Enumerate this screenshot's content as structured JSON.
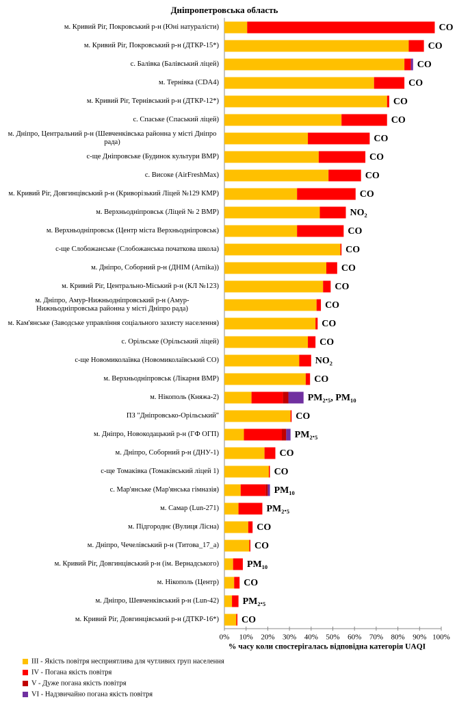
{
  "chart_data": {
    "type": "stacked-barh",
    "title": "Дніпропетровська  область",
    "x_label": "% часу коли спостерігалась відповідна категорія UAQI",
    "categories": [
      "м. Кривий  Ріг, Покровський  р-н (Юні натуралісти)",
      "м. Кривий  Ріг, Покровський  р-н (ДТКР-15*)",
      "с. Балівка  (Балівський ліцей)",
      "м. Тернівка  (CDA4)",
      "м. Кривий  Ріг, Тернівський  р-н  (ДТКР-12*)",
      "с. Спаське  (Спаський ліцей)",
      "м. Дніпро,  Центральний  р-н (Шевченківська районна  у місті Дніпро рада)",
      "с-ще Дніпровське  (Будинок культури ВМР)",
      "с. Високе  (AirFreshMax)",
      "м. Кривий  Ріг, Довгинцівський  р-н  (Криворізький Ліцей №129 КМР)",
      "м. Верхньодніпровськ  (Ліцей № 2 ВМР)",
      "м. Верхньодніпровськ  (Центр міста Верхньодніпровськ)",
      "с-ще Слобожанське  (Слобожанська початкова школа)",
      "м. Дніпро,  Соборний  р-н  (ДНІМ  (Arnika))",
      "м. Кривий  Ріг, Центрально-Міський  р-н  (КЛ №123)",
      "м. Дніпро,  Амур-Нижньодніпровський  р-н  (Амур-Нижньодніпровська  районна  у місті Дніпро рада)",
      "м. Кам'янське  (Заводське управління  соціального захисту населення)",
      "с. Орільське  (Орільський ліцей)",
      "с-ще Новомиколаївка  (Новомиколаївський  СО)",
      "м. Верхньодніпровськ  (Лікарня ВМР)",
      "м. Нікополь  (Княжа-2)",
      "ПЗ \"Дніпровсько-Орільський\"",
      "м. Дніпро,  Новокодацький  р-н  (ГФ ОГП)",
      "м. Дніпро,  Соборний  р-н  (ДНУ-1)",
      "с-ще Томаківка  (Томаківський  ліцей 1)",
      "с. Мар'янське  (Мар'янська гімназія)",
      "м. Самар  (Lun-271)",
      "м. Підгороднє  (Вулиця  Лісна)",
      "м. Дніпро,  Чечелівський  р-н  (Титова_17_а)",
      "м. Кривий  Ріг, Довгинцівський  р-н  (ім. Вернадського)",
      "м. Нікополь  (Центр)",
      "м. Дніпро,  Шевченківський  р-н  (Lun-42)",
      "м. Кривий  Ріг, Довгинцівський  р-н  (ДТКР-16*)"
    ],
    "annotations": [
      "CO",
      "CO",
      "CO",
      "CO",
      "CO",
      "CO",
      "CO",
      "CO",
      "CO",
      "CO",
      "NO₂",
      "CO",
      "CO",
      "CO",
      "CO",
      "CO",
      "CO",
      "CO",
      "NO₂",
      "CO",
      "PM₂.₅, PM₁₀",
      "CO",
      "PM₂.₅",
      "CO",
      "CO",
      "PM₁₀",
      "PM₂.₅",
      "CO",
      "CO",
      "PM₁₀",
      "CO",
      "PM₂.₅",
      "CO"
    ],
    "series": [
      {
        "name": "ІІІ - Якість повітря несприятлива  для чутливих  груп населення",
        "color": "#FFC000",
        "values": [
          10.5,
          85,
          83,
          69,
          75,
          54,
          38.5,
          43.5,
          48,
          33.5,
          44,
          33.5,
          53.5,
          47,
          45.5,
          42.5,
          42,
          38.5,
          34.5,
          37.5,
          12.5,
          30.5,
          9,
          18.5,
          20.5,
          7.5,
          6.5,
          11,
          11.5,
          4,
          4.5,
          3.5,
          5.5
        ]
      },
      {
        "name": "IV - Погана якість повітря",
        "color": "#FF0000",
        "values": [
          86.5,
          7,
          3,
          14,
          1,
          21,
          28.5,
          21.5,
          15,
          27,
          12,
          21.5,
          0.5,
          5,
          3.5,
          2,
          1,
          3.5,
          5.5,
          2,
          14.5,
          0.5,
          17.5,
          5,
          0.5,
          11.5,
          11,
          2,
          0.5,
          4.5,
          2.5,
          3,
          0.5
        ]
      },
      {
        "name": "V - Дуже погана якість повітря",
        "color": "#C00000",
        "values": [
          0,
          0,
          0,
          0,
          0,
          0,
          0,
          0,
          0,
          0,
          0,
          0,
          0,
          0,
          0,
          0,
          0,
          0,
          0,
          0,
          2.5,
          0,
          2,
          0,
          0,
          1,
          0,
          0,
          0,
          0,
          0,
          0,
          0
        ]
      },
      {
        "name": "VI - Надзвичайно  погана якість повітря",
        "color": "#7030A0",
        "values": [
          0,
          0,
          1,
          0,
          0,
          0,
          0,
          0,
          0,
          0,
          0,
          0,
          0,
          0,
          0,
          0,
          0,
          0,
          0,
          0,
          7,
          0,
          2,
          0,
          0,
          1,
          0,
          0,
          0,
          0,
          0,
          0,
          0
        ]
      }
    ],
    "xlim": [
      0,
      100
    ],
    "xticks": [
      {
        "value": 0,
        "label": "0%"
      },
      {
        "value": 10,
        "label": "10%"
      },
      {
        "value": 20,
        "label": "20%"
      },
      {
        "value": 30,
        "label": "30%"
      },
      {
        "value": 40,
        "label": "40%"
      },
      {
        "value": 50,
        "label": "50%"
      },
      {
        "value": 60,
        "label": "60%"
      },
      {
        "value": 70,
        "label": "70%"
      },
      {
        "value": 80,
        "label": "80%"
      },
      {
        "value": 90,
        "label": "90%"
      },
      {
        "value": 100,
        "label": "100%"
      }
    ]
  }
}
